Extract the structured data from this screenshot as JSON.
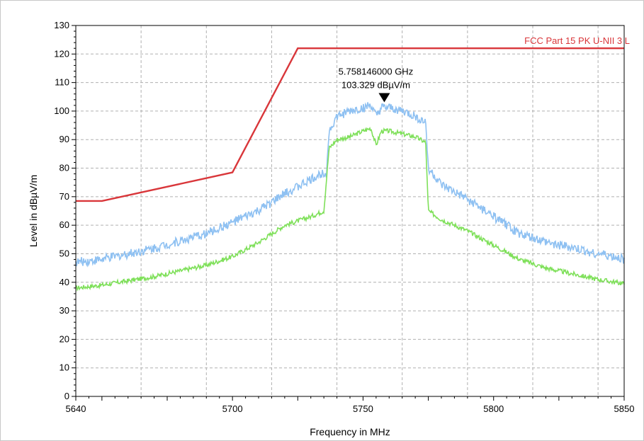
{
  "chart_data": {
    "type": "line",
    "xlabel": "Frequency in MHz",
    "ylabel": "Level in dBµV/m",
    "xlim": [
      5640,
      5850
    ],
    "ylim": [
      0,
      130
    ],
    "x_ticks": [
      5640,
      5700,
      5750,
      5800,
      5850
    ],
    "y_ticks": [
      0,
      10,
      20,
      30,
      40,
      50,
      60,
      70,
      80,
      90,
      100,
      110,
      120,
      130
    ],
    "grid": true,
    "series": [
      {
        "name": "FCC Part 15 PK U-NII 3 L",
        "color": "#d9363a",
        "points": [
          [
            5640,
            68.5
          ],
          [
            5650,
            68.5
          ],
          [
            5700,
            78.5
          ],
          [
            5725,
            122
          ],
          [
            5850,
            122
          ]
        ]
      },
      {
        "color": "#8fc1f2",
        "points": [
          [
            5640,
            47
          ],
          [
            5650,
            48
          ],
          [
            5670,
            52
          ],
          [
            5690,
            57
          ],
          [
            5700,
            61
          ],
          [
            5710,
            65
          ],
          [
            5720,
            71
          ],
          [
            5730,
            76
          ],
          [
            5736,
            79
          ],
          [
            5737,
            93
          ],
          [
            5740,
            98
          ],
          [
            5745,
            100
          ],
          [
            5750,
            101
          ],
          [
            5753,
            102
          ],
          [
            5755,
            98
          ],
          [
            5757,
            101
          ],
          [
            5760,
            101
          ],
          [
            5765,
            100
          ],
          [
            5770,
            98
          ],
          [
            5774,
            96
          ],
          [
            5775,
            80
          ],
          [
            5780,
            74
          ],
          [
            5790,
            69
          ],
          [
            5800,
            63
          ],
          [
            5810,
            57
          ],
          [
            5820,
            54
          ],
          [
            5830,
            52
          ],
          [
            5840,
            50
          ],
          [
            5850,
            48
          ]
        ]
      },
      {
        "color": "#7fe05a",
        "points": [
          [
            5640,
            38
          ],
          [
            5650,
            39
          ],
          [
            5670,
            42
          ],
          [
            5690,
            46
          ],
          [
            5700,
            49
          ],
          [
            5710,
            54
          ],
          [
            5720,
            60
          ],
          [
            5730,
            63
          ],
          [
            5735,
            65
          ],
          [
            5737,
            87
          ],
          [
            5740,
            90
          ],
          [
            5745,
            91
          ],
          [
            5750,
            93
          ],
          [
            5753,
            94
          ],
          [
            5755,
            88
          ],
          [
            5757,
            93
          ],
          [
            5760,
            93
          ],
          [
            5765,
            92
          ],
          [
            5770,
            91
          ],
          [
            5774,
            89
          ],
          [
            5775,
            65
          ],
          [
            5780,
            62
          ],
          [
            5790,
            58
          ],
          [
            5800,
            53
          ],
          [
            5810,
            48
          ],
          [
            5820,
            45
          ],
          [
            5830,
            43
          ],
          [
            5840,
            41
          ],
          [
            5850,
            39.5
          ]
        ]
      }
    ],
    "marker": {
      "frequency": "5.758146000 GHz",
      "level": "103.329 dBµV/m",
      "x": 5758.146,
      "y": 103.329
    }
  }
}
